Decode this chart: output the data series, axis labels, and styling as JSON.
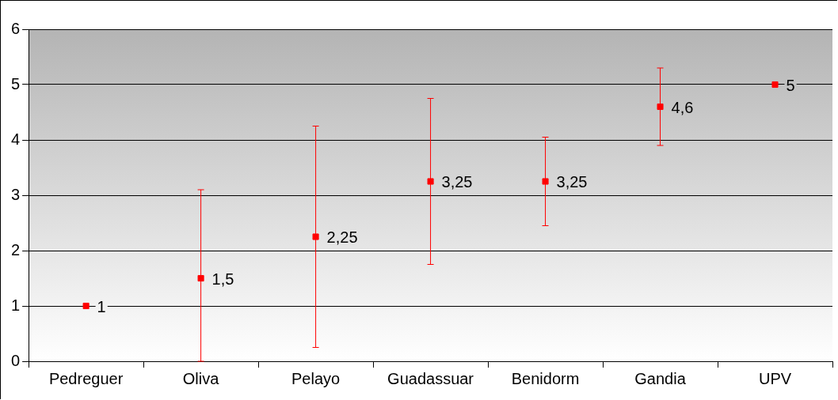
{
  "chart_data": {
    "type": "scatter",
    "categories": [
      "Pedreguer",
      "Oliva",
      "Pelayo",
      "Guadassuar",
      "Benidorm",
      "Gandia",
      "UPV"
    ],
    "values": [
      1,
      1.5,
      2.25,
      3.25,
      3.25,
      4.6,
      5
    ],
    "errors": [
      null,
      [
        0,
        3.1
      ],
      2,
      1.5,
      0.8,
      0.7,
      null
    ],
    "value_labels": [
      "1",
      "1,5",
      "2,25",
      "3,25",
      "3,25",
      "4,6",
      "5"
    ],
    "color": "#ff0000",
    "marker": "square",
    "ylim": [
      0,
      6
    ],
    "yticks": [
      0,
      1,
      2,
      3,
      4,
      5,
      6
    ],
    "grid": "y"
  }
}
